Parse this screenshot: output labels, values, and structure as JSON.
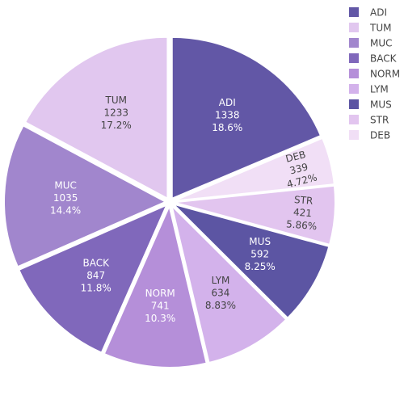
{
  "chart_data": {
    "type": "pie",
    "title": "",
    "slices": [
      {
        "label": "ADI",
        "value": 1338,
        "percent": "18.6%",
        "color": "#6257a6"
      },
      {
        "label": "DEB",
        "value": 339,
        "percent": "4.72%",
        "color": "#f1dff6"
      },
      {
        "label": "STR",
        "value": 421,
        "percent": "5.86%",
        "color": "#e2c5ef"
      },
      {
        "label": "MUS",
        "value": 592,
        "percent": "8.25%",
        "color": "#5c55a3"
      },
      {
        "label": "LYM",
        "value": 634,
        "percent": "8.83%",
        "color": "#d3b2eb"
      },
      {
        "label": "NORM",
        "value": 741,
        "percent": "10.3%",
        "color": "#b58fd9"
      },
      {
        "label": "BACK",
        "value": 847,
        "percent": "11.8%",
        "color": "#8068bb"
      },
      {
        "label": "MUC",
        "value": 1035,
        "percent": "14.4%",
        "color": "#a186cd"
      },
      {
        "label": "TUM",
        "value": 1233,
        "percent": "17.2%",
        "color": "#e1c7ef"
      }
    ],
    "legend": {
      "placement": "top-right",
      "items": [
        {
          "label": "ADI",
          "color": "#6257a6"
        },
        {
          "label": "TUM",
          "color": "#e1c7ef"
        },
        {
          "label": "MUC",
          "color": "#a186cd"
        },
        {
          "label": "BACK",
          "color": "#8068bb"
        },
        {
          "label": "NORM",
          "color": "#b58fd9"
        },
        {
          "label": "LYM",
          "color": "#d3b2eb"
        },
        {
          "label": "MUS",
          "color": "#5c55a3"
        },
        {
          "label": "STR",
          "color": "#e2c5ef"
        },
        {
          "label": "DEB",
          "color": "#f1dff6"
        }
      ]
    }
  }
}
